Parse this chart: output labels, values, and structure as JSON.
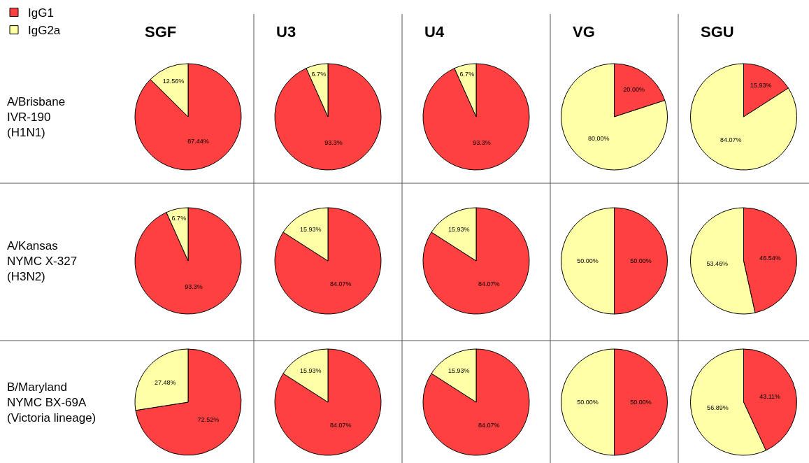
{
  "chart_data": [
    {
      "type": "pie",
      "title": "SGF",
      "ylabel": "A/Brisbane\nIVR-190\n(H1N1)",
      "legend": "top left",
      "categories": [
        "IgG1",
        "IgG2a"
      ],
      "colors": [
        "#ff4040",
        "#ffffa8"
      ],
      "values": [
        87.44,
        12.56
      ],
      "value_labels": [
        "87.44%",
        "12.56%"
      ]
    },
    {
      "type": "pie",
      "title": "U3",
      "categories": [
        null,
        null
      ],
      "colors": [
        "#ff4040",
        "#ffffa8"
      ],
      "values": [
        93.3,
        6.7
      ],
      "value_labels": [
        "93.3%",
        "6.7%"
      ]
    },
    {
      "type": "pie",
      "title": "U4",
      "categories": [
        null,
        null
      ],
      "colors": [
        "#ff4040",
        "#ffffa8"
      ],
      "values": [
        93.3,
        6.7
      ],
      "value_labels": [
        "93.3%",
        "6.7%"
      ]
    },
    {
      "type": "pie",
      "title": "VG",
      "categories": [
        null,
        null
      ],
      "colors": [
        "#ff4040",
        "#ffffa8"
      ],
      "values": [
        20.0,
        80.0
      ],
      "value_labels": [
        "20.00%",
        "80.00%"
      ]
    },
    {
      "type": "pie",
      "title": "SGU",
      "categories": [
        null,
        null
      ],
      "colors": [
        "#ff4040",
        "#ffffa8"
      ],
      "values": [
        15.93,
        84.07
      ],
      "value_labels": [
        "15.93%",
        "84.07%"
      ]
    },
    {
      "type": "pie",
      "ylabel": "A/Kansas\nNYMC X-327\n(H3N2)",
      "categories": [
        null,
        null
      ],
      "colors": [
        "#ff4040",
        "#ffffa8"
      ],
      "values": [
        93.3,
        6.7
      ],
      "value_labels": [
        "93.3%",
        "6.7%"
      ]
    },
    {
      "type": "pie",
      "categories": [
        null,
        null
      ],
      "colors": [
        "#ff4040",
        "#ffffa8"
      ],
      "values": [
        84.07,
        15.93
      ],
      "value_labels": [
        "84.07%",
        "15.93%"
      ]
    },
    {
      "type": "pie",
      "categories": [
        null,
        null
      ],
      "colors": [
        "#ff4040",
        "#ffffa8"
      ],
      "values": [
        84.07,
        15.93
      ],
      "value_labels": [
        "84.07%",
        "15.93%"
      ]
    },
    {
      "type": "pie",
      "categories": [
        null,
        null
      ],
      "colors": [
        "#ff4040",
        "#ffffa8"
      ],
      "values": [
        50.0,
        50.0
      ],
      "value_labels": [
        "50.00%",
        "50.00%"
      ]
    },
    {
      "type": "pie",
      "categories": [
        null,
        null
      ],
      "colors": [
        "#ff4040",
        "#ffffa8"
      ],
      "values": [
        46.54,
        53.46
      ],
      "value_labels": [
        "46.54%",
        "53.46%"
      ]
    },
    {
      "type": "pie",
      "ylabel": "B/Maryland\nNYMC BX-69A\n(Victoria lineage)",
      "categories": [
        null,
        null
      ],
      "colors": [
        "#ff4040",
        "#ffffa8"
      ],
      "values": [
        72.52,
        27.48
      ],
      "value_labels": [
        "72.52%",
        "27.48%"
      ]
    },
    {
      "type": "pie",
      "categories": [
        null,
        null
      ],
      "colors": [
        "#ff4040",
        "#ffffa8"
      ],
      "values": [
        84.07,
        15.93
      ],
      "value_labels": [
        "84.07%",
        "15.93%"
      ]
    },
    {
      "type": "pie",
      "categories": [
        null,
        null
      ],
      "colors": [
        "#ff4040",
        "#ffffa8"
      ],
      "values": [
        84.07,
        15.93
      ],
      "value_labels": [
        "84.07%",
        "15.93%"
      ]
    },
    {
      "type": "pie",
      "categories": [
        null,
        null
      ],
      "colors": [
        "#ff4040",
        "#ffffa8"
      ],
      "values": [
        50.0,
        50.0
      ],
      "value_labels": [
        "50.00%",
        "50.00%"
      ]
    },
    {
      "type": "pie",
      "categories": [
        null,
        null
      ],
      "colors": [
        "#ff4040",
        "#ffffa8"
      ],
      "values": [
        43.11,
        56.89
      ],
      "value_labels": [
        "43.11%",
        "56.89%"
      ]
    }
  ]
}
